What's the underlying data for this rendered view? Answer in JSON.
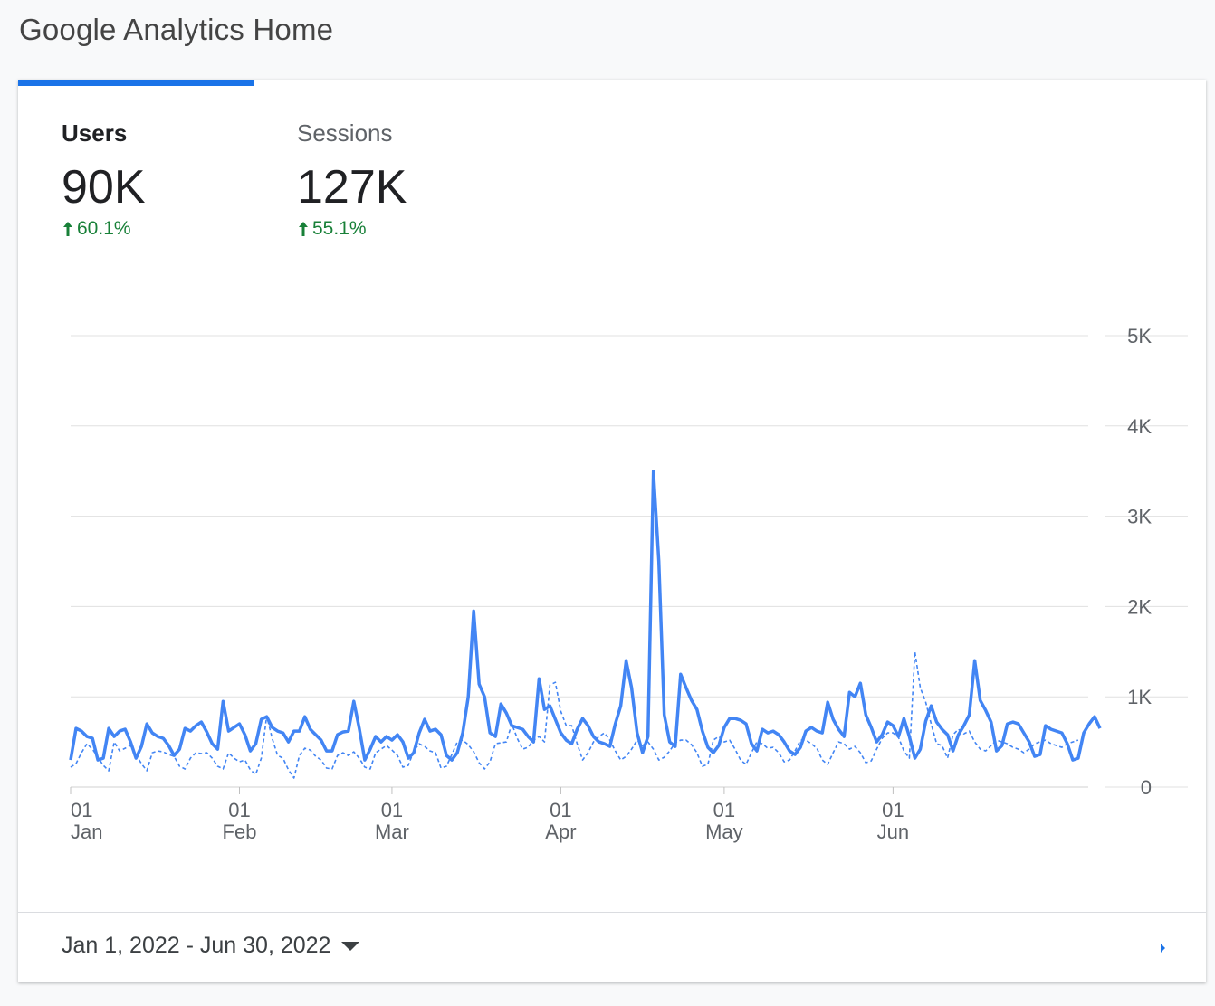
{
  "page": {
    "title": "Google Analytics Home"
  },
  "metrics": [
    {
      "label": "Users",
      "value": "90K",
      "change": "60.1%",
      "active": true
    },
    {
      "label": "Sessions",
      "value": "127K",
      "change": "55.1%",
      "active": false
    }
  ],
  "date_range": {
    "label": "Jan 1, 2022 - Jun 30, 2022"
  },
  "colors": {
    "accent": "#1a73e8",
    "line": "#4285f4",
    "positive": "#188038",
    "grid": "#e0e0e0"
  },
  "chart_data": {
    "type": "line",
    "ylim": [
      0,
      5000
    ],
    "y_ticks": [
      "0",
      "1K",
      "2K",
      "3K",
      "4K",
      "5K"
    ],
    "y_tick_values": [
      0,
      1000,
      2000,
      3000,
      4000,
      5000
    ],
    "x_ticks": [
      {
        "day": "01",
        "month": "Jan",
        "index": 0
      },
      {
        "day": "01",
        "month": "Feb",
        "index": 31
      },
      {
        "day": "01",
        "month": "Mar",
        "index": 59
      },
      {
        "day": "01",
        "month": "Apr",
        "index": 90
      },
      {
        "day": "01",
        "month": "May",
        "index": 120
      },
      {
        "day": "01",
        "month": "Jun",
        "index": 151
      }
    ],
    "series": [
      {
        "style": "solid",
        "values": [
          300,
          650,
          620,
          560,
          540,
          300,
          320,
          650,
          560,
          620,
          640,
          500,
          320,
          450,
          700,
          600,
          560,
          540,
          460,
          350,
          420,
          650,
          620,
          680,
          720,
          610,
          480,
          420,
          950,
          620,
          660,
          700,
          580,
          400,
          480,
          750,
          780,
          660,
          620,
          600,
          500,
          620,
          620,
          780,
          640,
          580,
          520,
          400,
          400,
          580,
          610,
          620,
          950,
          650,
          300,
          420,
          560,
          500,
          560,
          520,
          580,
          500,
          320,
          380,
          600,
          750,
          620,
          640,
          580,
          350,
          300,
          380,
          600,
          1000,
          1950,
          1140,
          1000,
          600,
          560,
          920,
          820,
          680,
          660,
          640,
          560,
          500,
          1200,
          860,
          900,
          750,
          600,
          520,
          480,
          640,
          760,
          680,
          560,
          500,
          480,
          450,
          700,
          900,
          1400,
          1100,
          600,
          380,
          560,
          3500,
          2500,
          800,
          500,
          450,
          1250,
          1100,
          960,
          860,
          620,
          440,
          380,
          460,
          660,
          760,
          760,
          740,
          700,
          480,
          400,
          640,
          600,
          620,
          580,
          500,
          400,
          360,
          440,
          620,
          660,
          620,
          600,
          940,
          750,
          640,
          560,
          1050,
          1000,
          1150,
          800,
          660,
          500,
          580,
          720,
          680,
          560,
          760,
          560,
          320,
          420,
          730,
          900,
          720,
          640,
          580,
          400,
          580,
          680,
          800,
          1400,
          960,
          850,
          720,
          400,
          460,
          700,
          720,
          700,
          600,
          500,
          340,
          360,
          680,
          640,
          620,
          600,
          480,
          300,
          320,
          600,
          700,
          780,
          650
        ]
      },
      {
        "style": "dashed",
        "values": [
          220,
          260,
          380,
          480,
          420,
          330,
          240,
          180,
          500,
          400,
          430,
          460,
          360,
          260,
          180,
          380,
          400,
          390,
          360,
          340,
          230,
          200,
          320,
          380,
          370,
          380,
          320,
          230,
          200,
          380,
          320,
          280,
          300,
          190,
          140,
          320,
          790,
          540,
          350,
          320,
          190,
          100,
          350,
          430,
          410,
          340,
          300,
          210,
          200,
          350,
          380,
          350,
          390,
          320,
          220,
          200,
          380,
          420,
          460,
          410,
          350,
          220,
          240,
          400,
          480,
          450,
          400,
          380,
          210,
          230,
          360,
          500,
          520,
          470,
          390,
          270,
          200,
          280,
          480,
          490,
          500,
          700,
          540,
          420,
          440,
          520,
          560,
          500,
          1130,
          1160,
          840,
          680,
          680,
          480,
          300,
          380,
          500,
          560,
          600,
          520,
          400,
          300,
          340,
          420,
          520,
          460,
          500,
          420,
          300,
          330,
          400,
          490,
          520,
          520,
          470,
          380,
          230,
          250,
          520,
          560,
          500,
          520,
          420,
          300,
          250,
          380,
          500,
          480,
          430,
          440,
          380,
          280,
          300,
          400,
          520,
          520,
          480,
          430,
          300,
          250,
          380,
          500,
          480,
          420,
          450,
          380,
          270,
          290,
          420,
          540,
          600,
          600,
          550,
          400,
          320,
          1500,
          1100,
          940,
          700,
          480,
          460,
          320,
          580,
          640,
          590,
          620,
          500,
          420,
          400,
          460,
          520,
          500,
          480,
          440,
          420,
          380,
          420,
          480,
          500,
          520,
          480,
          460,
          440,
          480,
          500,
          520
        ]
      }
    ]
  }
}
